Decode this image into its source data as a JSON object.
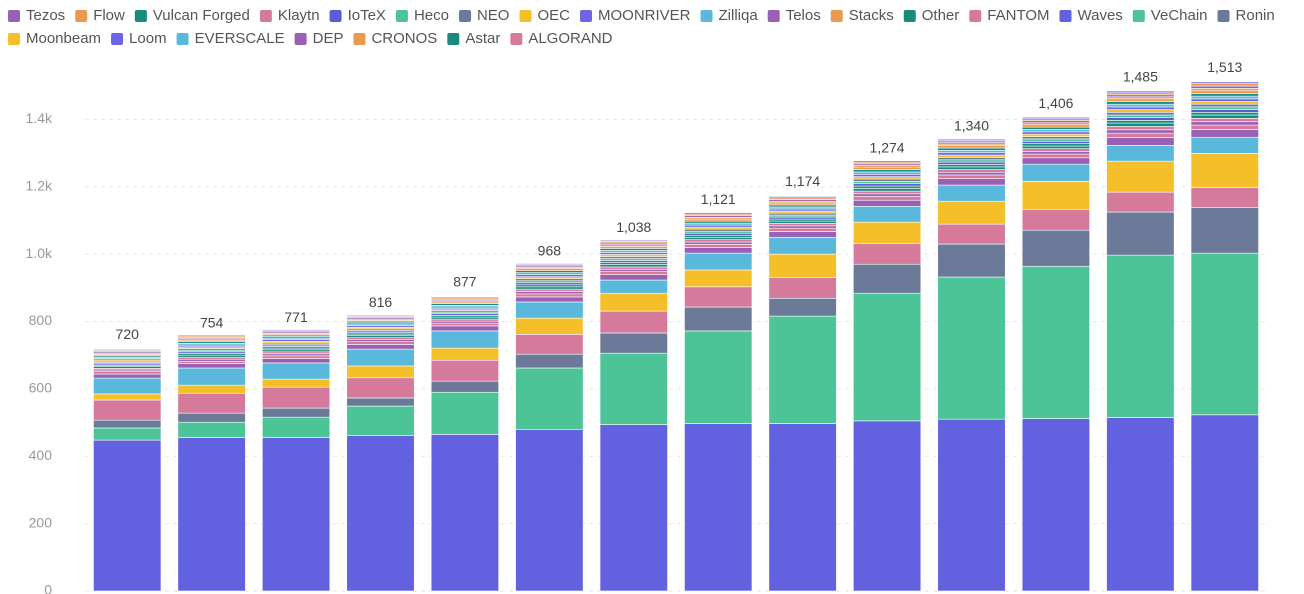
{
  "chart_data": {
    "type": "stacked_bar",
    "categories": [
      null,
      null,
      null,
      null,
      null,
      null,
      null,
      null,
      null,
      null,
      null,
      null,
      null,
      null
    ],
    "ylim": [
      0,
      1600
    ],
    "yticks": [
      0,
      200,
      400,
      600,
      800,
      {
        "value": 1000,
        "label": "1.0k"
      },
      {
        "value": 1200,
        "label": "1.2k"
      },
      {
        "value": 1400,
        "label": "1.4k"
      }
    ],
    "grid": true,
    "legend": "top",
    "totals": {
      "values": [
        720,
        754,
        771,
        816,
        877,
        968,
        1038,
        1121,
        1174,
        1274,
        1340,
        1406,
        1485,
        1513
      ],
      "value_labels": [
        "720",
        "754",
        "771",
        "816",
        "877",
        "968",
        "1,038",
        "1,121",
        "1,174",
        "1,274",
        "1,340",
        "1,406",
        "1,485",
        "1,513"
      ]
    },
    "series": [
      {
        "name": "Tezos",
        "color": "#9a60b4",
        "values": [
          5,
          6,
          6,
          6,
          6,
          7,
          7,
          7,
          7,
          8,
          8,
          8,
          10,
          10
        ]
      },
      {
        "name": "Flow",
        "color": "#ea9a50",
        "values": [
          4,
          4,
          4,
          4,
          4,
          4,
          5,
          5,
          5,
          5,
          5,
          6,
          6,
          7
        ]
      },
      {
        "name": "Vulcan Forged",
        "color": "#1a8a7f",
        "values": [
          4,
          5,
          5,
          5,
          5,
          6,
          6,
          6,
          6,
          7,
          7,
          7,
          8,
          8
        ]
      },
      {
        "name": "Klaytn",
        "color": "#d67a9c",
        "values": [
          5,
          6,
          6,
          6,
          6,
          7,
          7,
          7,
          7,
          8,
          8,
          8,
          10,
          10
        ]
      },
      {
        "name": "IoTeX",
        "color": "#5b5bd6",
        "values": [
          4,
          5,
          5,
          5,
          5,
          6,
          6,
          6,
          6,
          7,
          7,
          7,
          8,
          8
        ]
      },
      {
        "name": "Heco",
        "color": "#4cc497",
        "values": [
          4,
          5,
          5,
          5,
          5,
          6,
          6,
          6,
          6,
          7,
          7,
          7,
          8,
          8
        ]
      },
      {
        "name": "NEO",
        "color": "#6b7a99",
        "values": [
          4,
          5,
          5,
          5,
          5,
          6,
          6,
          6,
          6,
          7,
          7,
          7,
          8,
          8
        ]
      },
      {
        "name": "OEC",
        "color": "#f5bf2a",
        "values": [
          4,
          5,
          5,
          5,
          5,
          6,
          6,
          6,
          6,
          7,
          7,
          7,
          8,
          8
        ]
      },
      {
        "name": "MOONRIVER",
        "color": "#6e64e6",
        "values": [
          4,
          5,
          5,
          5,
          5,
          6,
          6,
          6,
          6,
          7,
          7,
          7,
          8,
          8
        ]
      },
      {
        "name": "Zilliqa",
        "color": "#5ab8dc",
        "values": [
          4,
          5,
          5,
          5,
          5,
          6,
          6,
          6,
          6,
          7,
          7,
          7,
          8,
          8
        ]
      },
      {
        "name": "Telos",
        "color": "#9a60b4",
        "values": [
          4,
          4,
          4,
          4,
          4,
          4,
          5,
          5,
          5,
          5,
          5,
          6,
          6,
          7
        ]
      },
      {
        "name": "Stacks",
        "color": "#ea9a50",
        "values": [
          4,
          4,
          4,
          4,
          4,
          4,
          5,
          5,
          5,
          5,
          5,
          6,
          6,
          7
        ]
      },
      {
        "name": "Other",
        "color": "#1a8a7f",
        "values": [
          4,
          5,
          5,
          5,
          5,
          6,
          6,
          6,
          6,
          7,
          7,
          7,
          8,
          8
        ]
      },
      {
        "name": "FANTOM",
        "color": "#d67a9c",
        "values": [
          60,
          59,
          62,
          60,
          62,
          59,
          65,
          60,
          62,
          62,
          59,
          62,
          59,
          59
        ]
      },
      {
        "name": "Waves",
        "color": "#6262e0",
        "values": [
          448,
          456,
          456,
          461,
          465,
          480,
          494,
          497,
          497,
          505,
          510,
          512,
          515,
          523
        ]
      },
      {
        "name": "VeChain",
        "color": "#4cc497",
        "values": [
          36,
          45,
          60,
          88,
          125,
          182,
          212,
          275,
          319,
          379,
          422,
          452,
          482,
          480
        ]
      },
      {
        "name": "Ronin",
        "color": "#6b7a99",
        "values": [
          23,
          27,
          27,
          24,
          33,
          41,
          60,
          71,
          53,
          86,
          98,
          107,
          128,
          136
        ]
      },
      {
        "name": "Moonbeam",
        "color": "#f5bf2a",
        "values": [
          18,
          24,
          24,
          35,
          36,
          48,
          53,
          50,
          69,
          63,
          68,
          83,
          92,
          101
        ]
      },
      {
        "name": "Loom",
        "color": "#6e64e6",
        "values": [
          3,
          3,
          3,
          3,
          3,
          3,
          3,
          4,
          4,
          4,
          4,
          4,
          5,
          5
        ]
      },
      {
        "name": "EVERSCALE",
        "color": "#5ab8dc",
        "values": [
          47,
          51,
          48,
          50,
          51,
          48,
          39,
          50,
          50,
          47,
          48,
          51,
          47,
          48
        ]
      },
      {
        "name": "DEP",
        "color": "#9a60b4",
        "values": [
          12,
          13,
          13,
          14,
          15,
          15,
          16,
          17,
          17,
          18,
          19,
          19,
          23,
          23
        ]
      },
      {
        "name": "CRONOS",
        "color": "#ea9a50",
        "values": [
          4,
          5,
          5,
          5,
          5,
          6,
          6,
          6,
          6,
          7,
          7,
          7,
          8,
          8
        ]
      },
      {
        "name": "Astar",
        "color": "#1a8a7f",
        "values": [
          5,
          6,
          6,
          6,
          6,
          7,
          7,
          7,
          7,
          8,
          8,
          8,
          10,
          10
        ]
      },
      {
        "name": "ALGORAND",
        "color": "#d67a9c",
        "values": [
          7,
          7,
          8,
          8,
          8,
          9,
          9,
          9,
          10,
          11,
          11,
          11,
          13,
          13
        ]
      }
    ]
  }
}
